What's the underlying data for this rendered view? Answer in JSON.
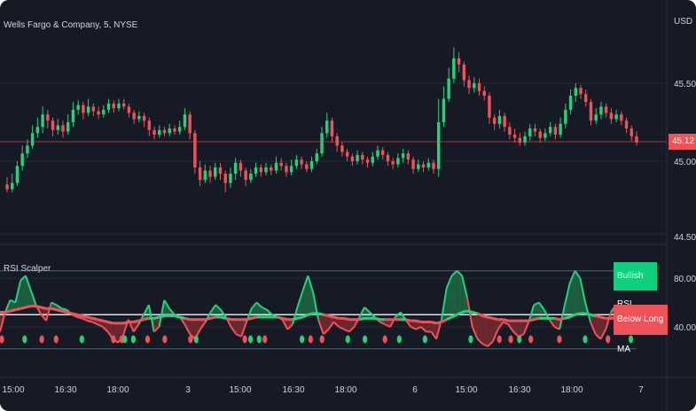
{
  "symbol": "Wells Fargo & Company, 5, NYSE",
  "currency": "USD",
  "indicator": "RSI Scalper",
  "price_axis": [
    "45.50",
    "45.00",
    "44.50"
  ],
  "price_tag": "45.12",
  "rsi_axis": [
    "80.00",
    "40.00"
  ],
  "labels": {
    "bullish": "Bullish RSI",
    "below": "Below Long MA"
  },
  "time_axis": [
    "15:00",
    "16:30",
    "18:00",
    "3",
    "15:00",
    "16:30",
    "18:00",
    "6",
    "15:00",
    "16:30",
    "18:00",
    "7"
  ],
  "colors": {
    "bg": "#161a25",
    "up": "#26d07c",
    "down": "#f0525a",
    "grid": "#232836",
    "band": "#2f6b8c"
  },
  "chart_data": {
    "type": "candlestick",
    "y_range": [
      44.45,
      45.78
    ],
    "current_price": 45.12,
    "candles": [
      [
        44.85,
        44.82,
        44.9,
        44.8
      ],
      [
        44.82,
        44.86,
        44.92,
        44.8
      ],
      [
        44.86,
        44.97,
        45.0,
        44.84
      ],
      [
        44.97,
        45.05,
        45.1,
        44.94
      ],
      [
        45.05,
        45.1,
        45.14,
        45.02
      ],
      [
        45.1,
        45.18,
        45.23,
        45.08
      ],
      [
        45.18,
        45.22,
        45.28,
        45.15
      ],
      [
        45.22,
        45.3,
        45.35,
        45.18
      ],
      [
        45.3,
        45.26,
        45.33,
        45.21
      ],
      [
        45.26,
        45.2,
        45.28,
        45.16
      ],
      [
        45.2,
        45.23,
        45.27,
        45.17
      ],
      [
        45.23,
        45.19,
        45.26,
        45.15
      ],
      [
        45.19,
        45.25,
        45.3,
        45.17
      ],
      [
        45.25,
        45.33,
        45.38,
        45.22
      ],
      [
        45.33,
        45.36,
        45.39,
        45.3
      ],
      [
        45.36,
        45.31,
        45.38,
        45.27
      ],
      [
        45.31,
        45.35,
        45.4,
        45.29
      ],
      [
        45.35,
        45.32,
        45.37,
        45.29
      ],
      [
        45.32,
        45.3,
        45.35,
        45.27
      ],
      [
        45.3,
        45.33,
        45.36,
        45.28
      ],
      [
        45.33,
        45.37,
        45.4,
        45.31
      ],
      [
        45.37,
        45.34,
        45.39,
        45.31
      ],
      [
        45.34,
        45.37,
        45.4,
        45.32
      ],
      [
        45.37,
        45.35,
        45.4,
        45.33
      ],
      [
        45.35,
        45.31,
        45.37,
        45.28
      ],
      [
        45.31,
        45.27,
        45.33,
        45.24
      ],
      [
        45.27,
        45.29,
        45.32,
        45.25
      ],
      [
        45.29,
        45.26,
        45.31,
        45.22
      ],
      [
        45.26,
        45.2,
        45.28,
        45.16
      ],
      [
        45.2,
        45.17,
        45.22,
        45.14
      ],
      [
        45.17,
        45.2,
        45.23,
        45.15
      ],
      [
        45.2,
        45.18,
        45.22,
        45.16
      ],
      [
        45.18,
        45.21,
        45.24,
        45.16
      ],
      [
        45.21,
        45.19,
        45.23,
        45.17
      ],
      [
        45.19,
        45.22,
        45.26,
        45.17
      ],
      [
        45.22,
        45.3,
        45.34,
        45.2
      ],
      [
        45.3,
        45.18,
        45.32,
        45.14
      ],
      [
        45.18,
        44.96,
        45.2,
        44.92
      ],
      [
        44.96,
        44.88,
        45.0,
        44.84
      ],
      [
        44.88,
        44.94,
        44.98,
        44.86
      ],
      [
        44.94,
        44.9,
        44.97,
        44.86
      ],
      [
        44.9,
        44.96,
        44.99,
        44.88
      ],
      [
        44.96,
        44.92,
        44.99,
        44.88
      ],
      [
        44.92,
        44.86,
        44.94,
        44.8
      ],
      [
        44.86,
        44.92,
        44.96,
        44.83
      ],
      [
        44.92,
        44.99,
        45.02,
        44.88
      ],
      [
        44.99,
        44.94,
        45.01,
        44.9
      ],
      [
        44.94,
        44.88,
        44.96,
        44.84
      ],
      [
        44.88,
        44.92,
        44.95,
        44.86
      ],
      [
        44.92,
        44.96,
        44.99,
        44.9
      ],
      [
        44.96,
        44.93,
        44.98,
        44.9
      ],
      [
        44.93,
        44.96,
        44.99,
        44.91
      ],
      [
        44.96,
        44.94,
        44.98,
        44.91
      ],
      [
        44.94,
        44.99,
        45.03,
        44.92
      ],
      [
        44.99,
        44.97,
        45.02,
        44.94
      ],
      [
        44.97,
        44.93,
        44.99,
        44.9
      ],
      [
        44.93,
        44.97,
        45.01,
        44.91
      ],
      [
        44.97,
        45.01,
        45.04,
        44.95
      ],
      [
        45.01,
        44.98,
        45.03,
        44.95
      ],
      [
        44.98,
        44.95,
        45.0,
        44.93
      ],
      [
        44.95,
        45.0,
        45.03,
        44.93
      ],
      [
        45.0,
        45.05,
        45.08,
        44.98
      ],
      [
        45.05,
        45.18,
        45.22,
        45.03
      ],
      [
        45.18,
        45.26,
        45.31,
        45.15
      ],
      [
        45.26,
        45.16,
        45.28,
        45.12
      ],
      [
        45.16,
        45.1,
        45.18,
        45.06
      ],
      [
        45.1,
        45.06,
        45.12,
        45.03
      ],
      [
        45.06,
        45.03,
        45.08,
        45.0
      ],
      [
        45.03,
        45.0,
        45.05,
        44.97
      ],
      [
        45.0,
        45.04,
        45.07,
        44.98
      ],
      [
        45.04,
        45.01,
        45.06,
        44.98
      ],
      [
        45.01,
        44.99,
        45.03,
        44.96
      ],
      [
        44.99,
        45.03,
        45.06,
        44.97
      ],
      [
        45.03,
        45.07,
        45.1,
        45.01
      ],
      [
        45.07,
        45.04,
        45.09,
        45.01
      ],
      [
        45.04,
        45.0,
        45.06,
        44.97
      ],
      [
        45.0,
        44.98,
        45.02,
        44.95
      ],
      [
        44.98,
        45.02,
        45.05,
        44.96
      ],
      [
        45.02,
        45.05,
        45.08,
        44.99
      ],
      [
        45.05,
        45.01,
        45.07,
        44.98
      ],
      [
        45.01,
        44.95,
        45.03,
        44.92
      ],
      [
        44.95,
        44.98,
        45.01,
        44.93
      ],
      [
        44.98,
        44.96,
        45.0,
        44.93
      ],
      [
        44.96,
        44.99,
        45.02,
        44.94
      ],
      [
        44.99,
        44.95,
        45.01,
        44.92
      ],
      [
        44.95,
        45.25,
        45.4,
        44.9
      ],
      [
        45.25,
        45.4,
        45.48,
        45.22
      ],
      [
        45.4,
        45.53,
        45.6,
        45.38
      ],
      [
        45.53,
        45.66,
        45.73,
        45.5
      ],
      [
        45.66,
        45.62,
        45.7,
        45.57
      ],
      [
        45.62,
        45.52,
        45.64,
        45.48
      ],
      [
        45.52,
        45.47,
        45.55,
        45.43
      ],
      [
        45.47,
        45.5,
        45.54,
        45.44
      ],
      [
        45.5,
        45.45,
        45.53,
        45.42
      ],
      [
        45.45,
        45.42,
        45.48,
        45.39
      ],
      [
        45.42,
        45.28,
        45.44,
        45.24
      ],
      [
        45.28,
        45.24,
        45.3,
        45.2
      ],
      [
        45.24,
        45.29,
        45.33,
        45.21
      ],
      [
        45.29,
        45.22,
        45.31,
        45.19
      ],
      [
        45.22,
        45.17,
        45.25,
        45.14
      ],
      [
        45.17,
        45.15,
        45.21,
        45.12
      ],
      [
        45.15,
        45.12,
        45.18,
        45.1
      ],
      [
        45.12,
        45.16,
        45.19,
        45.1
      ],
      [
        45.16,
        45.21,
        45.24,
        45.13
      ],
      [
        45.21,
        45.19,
        45.24,
        45.16
      ],
      [
        45.19,
        45.15,
        45.21,
        45.12
      ],
      [
        45.15,
        45.18,
        45.21,
        45.13
      ],
      [
        45.18,
        45.22,
        45.25,
        45.16
      ],
      [
        45.22,
        45.17,
        45.24,
        45.14
      ],
      [
        45.17,
        45.24,
        45.28,
        45.15
      ],
      [
        45.24,
        45.33,
        45.37,
        45.21
      ],
      [
        45.33,
        45.42,
        45.46,
        45.3
      ],
      [
        45.42,
        45.47,
        45.5,
        45.38
      ],
      [
        45.47,
        45.43,
        45.49,
        45.4
      ],
      [
        45.43,
        45.38,
        45.46,
        45.35
      ],
      [
        45.38,
        45.26,
        45.4,
        45.23
      ],
      [
        45.26,
        45.3,
        45.34,
        45.24
      ],
      [
        45.3,
        45.35,
        45.38,
        45.27
      ],
      [
        45.35,
        45.31,
        45.37,
        45.28
      ],
      [
        45.31,
        45.27,
        45.34,
        45.24
      ],
      [
        45.27,
        45.3,
        45.33,
        45.25
      ],
      [
        45.3,
        45.26,
        45.32,
        45.23
      ],
      [
        45.26,
        45.21,
        45.28,
        45.18
      ],
      [
        45.21,
        45.16,
        45.23,
        45.13
      ],
      [
        45.16,
        45.12,
        45.19,
        45.1
      ]
    ],
    "rsi": [
      36,
      52,
      62,
      60,
      78,
      82,
      70,
      58,
      50,
      45,
      60,
      58,
      55,
      54,
      50,
      48,
      47,
      45,
      44,
      42,
      40,
      36,
      30,
      27,
      33,
      46,
      36,
      42,
      50,
      58,
      36,
      40,
      62,
      55,
      50,
      48,
      42,
      34,
      30,
      38,
      44,
      52,
      58,
      54,
      48,
      40,
      34,
      32,
      44,
      55,
      60,
      56,
      54,
      50,
      48,
      46,
      38,
      42,
      57,
      70,
      82,
      68,
      46,
      34,
      38,
      44,
      40,
      38,
      36,
      40,
      48,
      56,
      52,
      48,
      44,
      42,
      40,
      48,
      52,
      46,
      40,
      38,
      40,
      36,
      36,
      30,
      46,
      72,
      82,
      86,
      82,
      64,
      40,
      30,
      26,
      24,
      28,
      38,
      44,
      42,
      36,
      32,
      34,
      44,
      58,
      60,
      54,
      46,
      40,
      38,
      58,
      76,
      86,
      80,
      60,
      44,
      34,
      30,
      38,
      52,
      58,
      52,
      48,
      44,
      40
    ],
    "rsi_short_ma": [
      48,
      50,
      51,
      52,
      53,
      54,
      55,
      54,
      53,
      52,
      52,
      51,
      50,
      49,
      47,
      45,
      44,
      42,
      41,
      39,
      38,
      36,
      35,
      34,
      36,
      38,
      40,
      42,
      45,
      47,
      47,
      48,
      50,
      50,
      49,
      48,
      46,
      44,
      43,
      43,
      44,
      46,
      48,
      48,
      46,
      44,
      43,
      42,
      44,
      46,
      48,
      49,
      49,
      48,
      47,
      46,
      45,
      46,
      49,
      53,
      56,
      55,
      52,
      48,
      45,
      44,
      43,
      42,
      42,
      44,
      46,
      48,
      48,
      47,
      46,
      45,
      44,
      45,
      46,
      45,
      43,
      41,
      40,
      39,
      38,
      37,
      40,
      46,
      52,
      57,
      60,
      58,
      53,
      47,
      42,
      38,
      36,
      37,
      39,
      40,
      40,
      39,
      39,
      41,
      45,
      48,
      49,
      48,
      46,
      44,
      47,
      52,
      57,
      58,
      55,
      50,
      45,
      42,
      41,
      44,
      47,
      48,
      47,
      46,
      45
    ],
    "rsi_long_ma": [
      52,
      52,
      53,
      54,
      55,
      56,
      57,
      57,
      56,
      55,
      55,
      54,
      53,
      52,
      51,
      50,
      49,
      48,
      47,
      46,
      45,
      44,
      43,
      43,
      43,
      44,
      44,
      45,
      46,
      47,
      47,
      48,
      49,
      49,
      49,
      48,
      47,
      46,
      46,
      46,
      46,
      47,
      48,
      48,
      47,
      46,
      46,
      46,
      46,
      47,
      48,
      48,
      48,
      48,
      48,
      47,
      46,
      46,
      47,
      48,
      50,
      51,
      51,
      50,
      49,
      48,
      47,
      47,
      46,
      46,
      46,
      47,
      47,
      47,
      46,
      46,
      46,
      46,
      46,
      46,
      45,
      45,
      44,
      44,
      44,
      43,
      44,
      46,
      48,
      50,
      52,
      53,
      52,
      51,
      49,
      48,
      47,
      46,
      46,
      45,
      45,
      45,
      45,
      45,
      46,
      47,
      47,
      47,
      47,
      46,
      47,
      48,
      50,
      51,
      51,
      50,
      49,
      48,
      47,
      47,
      47,
      47,
      47,
      46,
      46
    ],
    "rsi_range": [
      20,
      100
    ],
    "rsi_bands": [
      86,
      22
    ],
    "rsi_midline": 50,
    "signal_dots": [
      {
        "i": 0,
        "c": "down"
      },
      {
        "i": 8,
        "c": "up"
      },
      {
        "i": 14,
        "c": "down"
      },
      {
        "i": 19,
        "c": "down"
      },
      {
        "i": 28,
        "c": "up"
      },
      {
        "i": 39,
        "c": "down"
      },
      {
        "i": 42,
        "c": "down"
      },
      {
        "i": 43,
        "c": "up"
      },
      {
        "i": 46,
        "c": "up"
      },
      {
        "i": 51,
        "c": "down"
      },
      {
        "i": 57,
        "c": "down"
      },
      {
        "i": 66,
        "c": "down"
      },
      {
        "i": 68,
        "c": "up"
      },
      {
        "i": 85,
        "c": "down"
      },
      {
        "i": 87,
        "c": "up"
      },
      {
        "i": 90,
        "c": "up"
      },
      {
        "i": 92,
        "c": "down"
      },
      {
        "i": 105,
        "c": "up"
      },
      {
        "i": 108,
        "c": "down"
      },
      {
        "i": 112,
        "c": "down"
      },
      {
        "i": 121,
        "c": "up"
      },
      {
        "i": 127,
        "c": "up"
      },
      {
        "i": 134,
        "c": "down"
      },
      {
        "i": 139,
        "c": "up"
      },
      {
        "i": 148,
        "c": "up"
      },
      {
        "i": 164,
        "c": "up"
      },
      {
        "i": 174,
        "c": "down"
      },
      {
        "i": 178,
        "c": "down"
      },
      {
        "i": 181,
        "c": "up"
      },
      {
        "i": 185,
        "c": "down"
      },
      {
        "i": 195,
        "c": "down"
      },
      {
        "i": 204,
        "c": "up"
      },
      {
        "i": 212,
        "c": "down"
      },
      {
        "i": 220,
        "c": "up"
      }
    ]
  }
}
